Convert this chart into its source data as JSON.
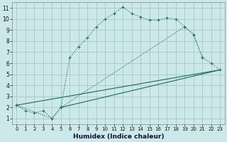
{
  "xlabel": "Humidex (Indice chaleur)",
  "background_color": "#cce8e8",
  "grid_color": "#aacccc",
  "line_color": "#1a6b5a",
  "xlim": [
    -0.5,
    23.5
  ],
  "ylim": [
    0.5,
    11.5
  ],
  "xticks": [
    0,
    1,
    2,
    3,
    4,
    5,
    6,
    7,
    8,
    9,
    10,
    11,
    12,
    13,
    14,
    15,
    16,
    17,
    18,
    19,
    20,
    21,
    22,
    23
  ],
  "yticks": [
    1,
    2,
    3,
    4,
    5,
    6,
    7,
    8,
    9,
    10,
    11
  ],
  "line1_x": [
    0,
    1,
    2,
    3,
    4,
    5,
    6,
    7,
    8,
    9,
    10,
    11,
    12,
    13,
    14,
    15,
    16,
    17,
    18,
    19,
    20,
    21
  ],
  "line1_y": [
    2.2,
    1.7,
    1.5,
    1.7,
    1.0,
    2.0,
    6.5,
    7.5,
    8.3,
    9.3,
    10.0,
    10.5,
    11.1,
    10.5,
    10.2,
    9.9,
    9.9,
    10.1,
    10.0,
    9.3,
    8.6,
    6.5
  ],
  "line2_x": [
    0,
    4,
    5,
    19,
    20,
    21,
    22,
    23
  ],
  "line2_y": [
    2.2,
    1.0,
    2.0,
    9.3,
    8.6,
    6.5,
    6.0,
    5.4
  ],
  "line3_x": [
    0,
    23
  ],
  "line3_y": [
    2.2,
    5.4
  ],
  "line4_x": [
    5,
    23
  ],
  "line4_y": [
    2.0,
    5.4
  ]
}
